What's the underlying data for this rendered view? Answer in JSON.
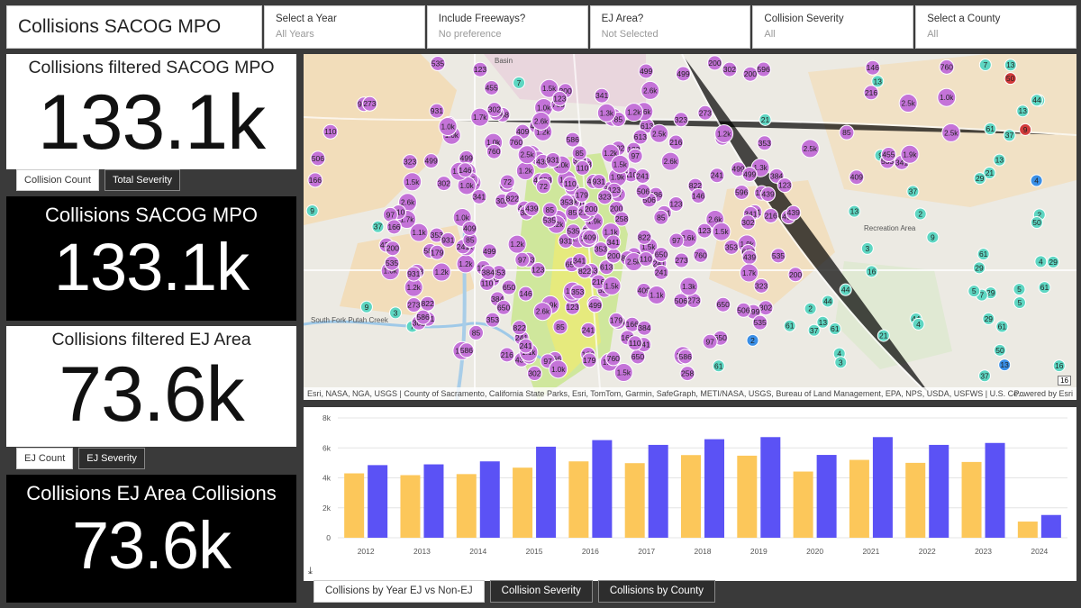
{
  "header": {
    "title": "Collisions SACOG MPO",
    "filters": [
      {
        "label": "Select a Year",
        "value": "All Years"
      },
      {
        "label": "Include Freeways?",
        "value": "No preference"
      },
      {
        "label": "EJ Area?",
        "value": "Not Selected"
      },
      {
        "label": "Collision Severity",
        "value": "All"
      },
      {
        "label": "Select a County",
        "value": "All"
      }
    ]
  },
  "kpis": [
    {
      "title": "Collisions filtered SACOG MPO",
      "value": "133.1k"
    },
    {
      "title": "Collisions SACOG MPO",
      "value": "133.1k"
    },
    {
      "title": "Collisions filtered EJ Area",
      "value": "73.6k"
    },
    {
      "title": "Collisions EJ Area Collisions",
      "value": "73.6k"
    }
  ],
  "tabs1": {
    "active": "Collision Count",
    "other": "Total Severity"
  },
  "tabs2": {
    "active": "EJ Count",
    "other": "EJ Severity"
  },
  "map": {
    "attribution": "Esri, NASA, NGA, USGS | County of Sacramento, California State Parks, Esri, TomTom, Garmin, SafeGraph, METI/NASA, USGS, Bureau of Land Management, EPA, NPS, USDA, USFWS | U.S. Ce...",
    "powered_by": "Powered by Esri",
    "scale_badge": "16",
    "place_labels": [
      "Basin",
      "South Fork Putah Creek",
      "Recreation Area"
    ],
    "cluster_labels": [
      "1.0k",
      "1.2k",
      "1.7k",
      "2.5k",
      "2.6k",
      "1.9k",
      "1.3k",
      "1.5k",
      "1.1k",
      "931",
      "822",
      "760",
      "650",
      "613",
      "596",
      "586",
      "535",
      "506",
      "499",
      "455",
      "439",
      "409",
      "384",
      "353",
      "341",
      "323",
      "302",
      "273",
      "258",
      "241",
      "216",
      "200",
      "179",
      "166",
      "146",
      "123",
      "110",
      "97",
      "85",
      "72",
      "61",
      "50",
      "44",
      "37",
      "29",
      "21",
      "16",
      "13",
      "9",
      "7",
      "5",
      "4",
      "3",
      "2"
    ],
    "colors": {
      "purple": "#c473d8",
      "teal": "#5ed6c2",
      "red": "#d23b3b",
      "blue": "#3a8fe6"
    }
  },
  "chart_data": {
    "type": "bar",
    "categories": [
      "2012",
      "2013",
      "2014",
      "2015",
      "2016",
      "2017",
      "2018",
      "2019",
      "2020",
      "2021",
      "2022",
      "2023",
      "2024"
    ],
    "series": [
      {
        "values": [
          4300,
          4180,
          4250,
          4680,
          5100,
          4980,
          5520,
          5480,
          4420,
          5200,
          5000,
          5060,
          1080
        ],
        "color": "#fcc75a"
      },
      {
        "values": [
          4850,
          4900,
          5100,
          6080,
          6520,
          6200,
          6580,
          6720,
          5530,
          6720,
          6200,
          6330,
          1520
        ],
        "color": "#5b52f5"
      }
    ],
    "ylim": [
      0,
      8000
    ],
    "yticks": [
      "0",
      "2k",
      "4k",
      "6k",
      "8k"
    ]
  },
  "bottom_tabs": [
    "Collisions by Year EJ vs Non-EJ",
    "Collision Severity",
    "Collisions by County"
  ],
  "download_icon": "download-icon"
}
